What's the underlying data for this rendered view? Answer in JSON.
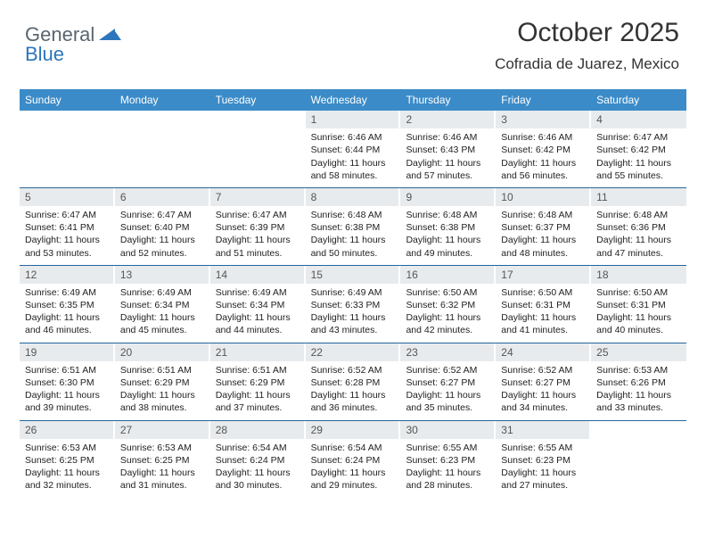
{
  "logo": {
    "text1": "General",
    "text2": "Blue"
  },
  "header": {
    "title": "October 2025",
    "location": "Cofradia de Juarez, Mexico"
  },
  "colors": {
    "header_bg": "#3b8bc8",
    "row_border": "#24659c",
    "daynum_bg": "#e8ebed",
    "logo_blue": "#2c76bc",
    "logo_gray": "#5a6570"
  },
  "day_names": [
    "Sunday",
    "Monday",
    "Tuesday",
    "Wednesday",
    "Thursday",
    "Friday",
    "Saturday"
  ],
  "weeks": [
    [
      null,
      null,
      null,
      {
        "n": "1",
        "sr": "6:46 AM",
        "ss": "6:44 PM",
        "dl": "11 hours and 58 minutes."
      },
      {
        "n": "2",
        "sr": "6:46 AM",
        "ss": "6:43 PM",
        "dl": "11 hours and 57 minutes."
      },
      {
        "n": "3",
        "sr": "6:46 AM",
        "ss": "6:42 PM",
        "dl": "11 hours and 56 minutes."
      },
      {
        "n": "4",
        "sr": "6:47 AM",
        "ss": "6:42 PM",
        "dl": "11 hours and 55 minutes."
      }
    ],
    [
      {
        "n": "5",
        "sr": "6:47 AM",
        "ss": "6:41 PM",
        "dl": "11 hours and 53 minutes."
      },
      {
        "n": "6",
        "sr": "6:47 AM",
        "ss": "6:40 PM",
        "dl": "11 hours and 52 minutes."
      },
      {
        "n": "7",
        "sr": "6:47 AM",
        "ss": "6:39 PM",
        "dl": "11 hours and 51 minutes."
      },
      {
        "n": "8",
        "sr": "6:48 AM",
        "ss": "6:38 PM",
        "dl": "11 hours and 50 minutes."
      },
      {
        "n": "9",
        "sr": "6:48 AM",
        "ss": "6:38 PM",
        "dl": "11 hours and 49 minutes."
      },
      {
        "n": "10",
        "sr": "6:48 AM",
        "ss": "6:37 PM",
        "dl": "11 hours and 48 minutes."
      },
      {
        "n": "11",
        "sr": "6:48 AM",
        "ss": "6:36 PM",
        "dl": "11 hours and 47 minutes."
      }
    ],
    [
      {
        "n": "12",
        "sr": "6:49 AM",
        "ss": "6:35 PM",
        "dl": "11 hours and 46 minutes."
      },
      {
        "n": "13",
        "sr": "6:49 AM",
        "ss": "6:34 PM",
        "dl": "11 hours and 45 minutes."
      },
      {
        "n": "14",
        "sr": "6:49 AM",
        "ss": "6:34 PM",
        "dl": "11 hours and 44 minutes."
      },
      {
        "n": "15",
        "sr": "6:49 AM",
        "ss": "6:33 PM",
        "dl": "11 hours and 43 minutes."
      },
      {
        "n": "16",
        "sr": "6:50 AM",
        "ss": "6:32 PM",
        "dl": "11 hours and 42 minutes."
      },
      {
        "n": "17",
        "sr": "6:50 AM",
        "ss": "6:31 PM",
        "dl": "11 hours and 41 minutes."
      },
      {
        "n": "18",
        "sr": "6:50 AM",
        "ss": "6:31 PM",
        "dl": "11 hours and 40 minutes."
      }
    ],
    [
      {
        "n": "19",
        "sr": "6:51 AM",
        "ss": "6:30 PM",
        "dl": "11 hours and 39 minutes."
      },
      {
        "n": "20",
        "sr": "6:51 AM",
        "ss": "6:29 PM",
        "dl": "11 hours and 38 minutes."
      },
      {
        "n": "21",
        "sr": "6:51 AM",
        "ss": "6:29 PM",
        "dl": "11 hours and 37 minutes."
      },
      {
        "n": "22",
        "sr": "6:52 AM",
        "ss": "6:28 PM",
        "dl": "11 hours and 36 minutes."
      },
      {
        "n": "23",
        "sr": "6:52 AM",
        "ss": "6:27 PM",
        "dl": "11 hours and 35 minutes."
      },
      {
        "n": "24",
        "sr": "6:52 AM",
        "ss": "6:27 PM",
        "dl": "11 hours and 34 minutes."
      },
      {
        "n": "25",
        "sr": "6:53 AM",
        "ss": "6:26 PM",
        "dl": "11 hours and 33 minutes."
      }
    ],
    [
      {
        "n": "26",
        "sr": "6:53 AM",
        "ss": "6:25 PM",
        "dl": "11 hours and 32 minutes."
      },
      {
        "n": "27",
        "sr": "6:53 AM",
        "ss": "6:25 PM",
        "dl": "11 hours and 31 minutes."
      },
      {
        "n": "28",
        "sr": "6:54 AM",
        "ss": "6:24 PM",
        "dl": "11 hours and 30 minutes."
      },
      {
        "n": "29",
        "sr": "6:54 AM",
        "ss": "6:24 PM",
        "dl": "11 hours and 29 minutes."
      },
      {
        "n": "30",
        "sr": "6:55 AM",
        "ss": "6:23 PM",
        "dl": "11 hours and 28 minutes."
      },
      {
        "n": "31",
        "sr": "6:55 AM",
        "ss": "6:23 PM",
        "dl": "11 hours and 27 minutes."
      },
      null
    ]
  ],
  "labels": {
    "sunrise": "Sunrise:",
    "sunset": "Sunset:",
    "daylight": "Daylight:"
  }
}
